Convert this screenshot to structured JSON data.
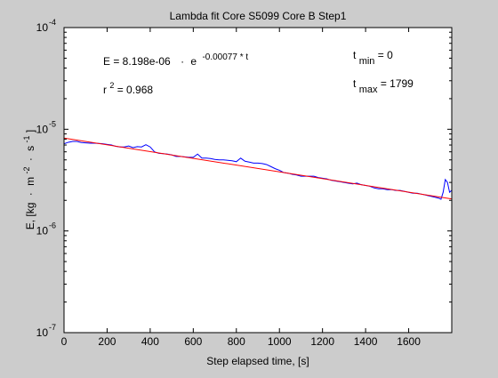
{
  "chart_data": {
    "type": "line",
    "title": "Lambda fit  Core S5099 Core B  Step1",
    "xlabel": "Step elapsed time, [s]",
    "ylabel": {
      "base": "E, [kg",
      "m": "m",
      "m_exp": "-2",
      "s": "s",
      "s_exp": "-1",
      "close": "]"
    },
    "xlim": [
      0,
      1800
    ],
    "ylim": [
      1e-07,
      0.0001
    ],
    "yscale": "log",
    "xticks": [
      0,
      200,
      400,
      600,
      800,
      1000,
      1200,
      1400,
      1600
    ],
    "xtick_labels": [
      "0",
      "200",
      "400",
      "600",
      "800",
      "1000",
      "1200",
      "1400",
      "1600"
    ],
    "yticks": [
      {
        "value": 0.0001,
        "base": "10",
        "exp": "-4"
      },
      {
        "value": 1e-05,
        "base": "10",
        "exp": "-5"
      },
      {
        "value": 1e-06,
        "base": "10",
        "exp": "-6"
      },
      {
        "value": 1e-07,
        "base": "10",
        "exp": "-7"
      }
    ],
    "grid": false,
    "annotations": {
      "equation": {
        "prefix": "E = 8.198e-06",
        "middle": "e",
        "exp": "-0.00077 * t"
      },
      "r2": {
        "base": "r",
        "exp": "2",
        "rest": " = 0.968"
      },
      "tmin": {
        "base": "t",
        "sub": "min",
        "rest": " = 0"
      },
      "tmax": {
        "base": "t",
        "sub": "max",
        "rest": " = 1799"
      }
    },
    "series": [
      {
        "color": "#0000ff",
        "x": [
          0,
          20,
          40,
          60,
          80,
          100,
          120,
          140,
          160,
          180,
          200,
          220,
          240,
          260,
          280,
          300,
          320,
          340,
          360,
          380,
          400,
          420,
          440,
          460,
          480,
          500,
          520,
          540,
          560,
          580,
          600,
          620,
          640,
          660,
          680,
          700,
          720,
          740,
          760,
          780,
          800,
          820,
          840,
          860,
          880,
          900,
          920,
          940,
          960,
          980,
          1000,
          1020,
          1040,
          1060,
          1080,
          1100,
          1120,
          1140,
          1160,
          1180,
          1200,
          1220,
          1240,
          1260,
          1280,
          1300,
          1320,
          1340,
          1360,
          1380,
          1400,
          1420,
          1440,
          1460,
          1480,
          1500,
          1520,
          1540,
          1560,
          1580,
          1600,
          1620,
          1640,
          1660,
          1680,
          1700,
          1720,
          1740,
          1750,
          1760,
          1770,
          1780,
          1790,
          1799
        ],
        "y": [
          7.2e-06,
          7.45e-06,
          7.6e-06,
          7.6e-06,
          7.4e-06,
          7.35e-06,
          7.3e-06,
          7.3e-06,
          7.25e-06,
          7.2e-06,
          7.1e-06,
          7e-06,
          6.8e-06,
          6.7e-06,
          6.7e-06,
          6.85e-06,
          6.6e-06,
          6.75e-06,
          6.7e-06,
          7.05e-06,
          6.7e-06,
          6e-06,
          5.8e-06,
          5.75e-06,
          5.7e-06,
          5.6e-06,
          5.4e-06,
          5.4e-06,
          5.35e-06,
          5.3e-06,
          5.3e-06,
          5.7e-06,
          5.2e-06,
          5.2e-06,
          5.15e-06,
          5.05e-06,
          5e-06,
          5e-06,
          4.95e-06,
          4.9e-06,
          4.8e-06,
          5.2e-06,
          4.85e-06,
          4.75e-06,
          4.65e-06,
          4.65e-06,
          4.6e-06,
          4.5e-06,
          4.3e-06,
          4.1e-06,
          3.95e-06,
          3.75e-06,
          3.7e-06,
          3.6e-06,
          3.55e-06,
          3.45e-06,
          3.45e-06,
          3.45e-06,
          3.45e-06,
          3.35e-06,
          3.3e-06,
          3.25e-06,
          3.15e-06,
          3.1e-06,
          3.05e-06,
          3e-06,
          2.95e-06,
          2.9e-06,
          2.95e-06,
          2.85e-06,
          2.8e-06,
          2.75e-06,
          2.65e-06,
          2.6e-06,
          2.6e-06,
          2.55e-06,
          2.55e-06,
          2.5e-06,
          2.5e-06,
          2.45e-06,
          2.4e-06,
          2.35e-06,
          2.35e-06,
          2.3e-06,
          2.25e-06,
          2.2e-06,
          2.15e-06,
          2.1e-06,
          2.05e-06,
          2.4e-06,
          3.2e-06,
          3e-06,
          2.4e-06,
          2.5e-06
        ]
      },
      {
        "color": "#ff0000",
        "x": [
          0,
          1799
        ],
        "y": [
          8.198e-06,
          2.064e-06
        ]
      }
    ]
  }
}
